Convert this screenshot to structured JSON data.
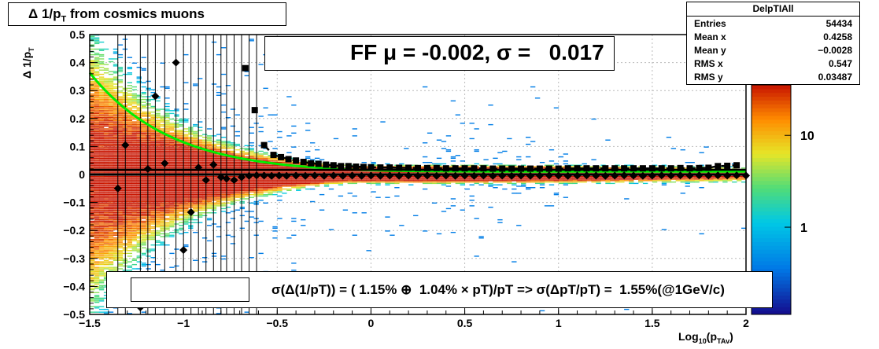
{
  "title_box": {
    "title": "Δ 1/p",
    "title_sub": "T",
    "title_rest": "  from cosmics muons"
  },
  "stats": {
    "name": "DelpTIAll",
    "rows": [
      {
        "key": "Entries",
        "value": "54434"
      },
      {
        "key": "Mean x",
        "value": "0.4258"
      },
      {
        "key": "Mean y",
        "value": "−0.0028"
      },
      {
        "key": "RMS x",
        "value": "0.547"
      },
      {
        "key": "RMS y",
        "value": "0.03487"
      }
    ]
  },
  "ff_label": "FF μ = -0.002, σ =   0.017",
  "legend_text": "σ(Δ(1/pT)) = ( 1.15% ⊕  1.04% × pT)/pT => σ(ΔpT/pT) =  1.55%(@1GeV/c)",
  "axis_labels": {
    "y_main": "Δ 1/p",
    "y_sub": "T",
    "x_main": "Log",
    "x_sub": "10",
    "x_mid": "(p",
    "x_sub2": "TAv",
    "x_end": ")"
  },
  "chart_data": {
    "type": "heatmap",
    "xlim": [
      -1.5,
      2
    ],
    "ylim": [
      -0.5,
      0.5
    ],
    "x_ticks": [
      -1.5,
      -1,
      -0.5,
      0,
      0.5,
      1,
      1.5,
      2
    ],
    "x_tick_labels": [
      "−1.5",
      "−1",
      "−0.5",
      "0",
      "0.5",
      "1",
      "1.5",
      "2"
    ],
    "y_ticks": [
      -0.5,
      -0.4,
      -0.3,
      -0.2,
      -0.1,
      0,
      0.1,
      0.2,
      0.3,
      0.4,
      0.5
    ],
    "y_tick_labels": [
      "−0.5",
      "−0.4",
      "−0.3",
      "−0.2",
      "−0.1",
      "0",
      "0.1",
      "0.2",
      "0.3",
      "0.4",
      "0.5"
    ],
    "colorbar": {
      "scale": "log",
      "labels": [
        "1",
        "10"
      ]
    },
    "grid": true,
    "mean_points": {
      "x": [
        -1.35,
        -1.31,
        -1.23,
        -1.19,
        -1.15,
        -1.1,
        -1.04,
        -1.0,
        -0.96,
        -0.92,
        -0.88,
        -0.84,
        -0.8,
        -0.77,
        -0.73,
        -0.69,
        -0.65,
        -0.61,
        -0.57,
        -0.53,
        -0.49,
        -0.45,
        -0.4,
        -0.35,
        -0.3,
        -0.25,
        -0.2,
        -0.15,
        -0.1,
        -0.05,
        0.0,
        0.05,
        0.1,
        0.15,
        0.2,
        0.25,
        0.3,
        0.35,
        0.4,
        0.45,
        0.5,
        0.55,
        0.6,
        0.65,
        0.7,
        0.75,
        0.8,
        0.85,
        0.9,
        0.95,
        1.0,
        1.05,
        1.1,
        1.15,
        1.2,
        1.25,
        1.3,
        1.35,
        1.4,
        1.45,
        1.5,
        1.55,
        1.6,
        1.65,
        1.7,
        1.75,
        1.8,
        1.85,
        1.9,
        1.95,
        2.0
      ],
      "y": [
        -0.05,
        0.105,
        -0.475,
        0.02,
        0.28,
        0.04,
        0.4,
        -0.27,
        -0.135,
        0.025,
        -0.02,
        0.035,
        -0.01,
        -0.015,
        -0.02,
        -0.01,
        -0.005,
        -0.003,
        -0.004,
        -0.005,
        -0.004,
        -0.005,
        -0.004,
        -0.005,
        -0.004,
        -0.005,
        -0.004,
        -0.005,
        -0.004,
        -0.005,
        -0.004,
        -0.005,
        -0.004,
        -0.005,
        -0.004,
        -0.005,
        -0.004,
        -0.005,
        -0.004,
        -0.005,
        -0.004,
        -0.005,
        -0.004,
        -0.005,
        -0.004,
        -0.005,
        -0.004,
        -0.005,
        -0.004,
        -0.003,
        -0.004,
        -0.005,
        -0.004,
        -0.003,
        -0.004,
        -0.005,
        -0.004,
        -0.003,
        -0.004,
        -0.005,
        -0.004,
        -0.003,
        -0.004,
        -0.003,
        -0.004,
        -0.003,
        -0.004,
        -0.003,
        -0.004,
        -0.003,
        -0.004
      ]
    },
    "sigma_points": {
      "x": [
        -0.67,
        -0.62,
        -0.57,
        -0.52,
        -0.48,
        -0.44,
        -0.4,
        -0.36,
        -0.32,
        -0.28,
        -0.24,
        -0.2,
        -0.16,
        -0.12,
        -0.08,
        -0.04,
        0.0,
        0.05,
        0.1,
        0.15,
        0.2,
        0.25,
        0.3,
        0.35,
        0.4,
        0.45,
        0.5,
        0.55,
        0.6,
        0.65,
        0.7,
        0.75,
        0.8,
        0.85,
        0.9,
        0.95,
        1.0,
        1.05,
        1.1,
        1.15,
        1.2,
        1.25,
        1.3,
        1.35,
        1.4,
        1.45,
        1.5,
        1.55,
        1.6,
        1.65,
        1.7,
        1.75,
        1.8,
        1.85,
        1.9,
        1.95
      ],
      "y": [
        0.38,
        0.23,
        0.105,
        0.07,
        0.062,
        0.055,
        0.05,
        0.045,
        0.04,
        0.038,
        0.035,
        0.033,
        0.03,
        0.03,
        0.028,
        0.027,
        0.026,
        0.025,
        0.025,
        0.024,
        0.024,
        0.023,
        0.023,
        0.023,
        0.022,
        0.022,
        0.022,
        0.022,
        0.022,
        0.021,
        0.021,
        0.021,
        0.021,
        0.021,
        0.021,
        0.021,
        0.021,
        0.022,
        0.022,
        0.022,
        0.022,
        0.022,
        0.022,
        0.022,
        0.022,
        0.022,
        0.022,
        0.022,
        0.022,
        0.023,
        0.022,
        0.023,
        0.024,
        0.03,
        0.031,
        0.033
      ]
    },
    "fit_curve": {
      "name": "σ(Δ(1/pT))",
      "terms_percent": [
        1.15,
        1.04
      ],
      "color": "#00ee00"
    },
    "mean_line": {
      "y": 0.0
    }
  }
}
